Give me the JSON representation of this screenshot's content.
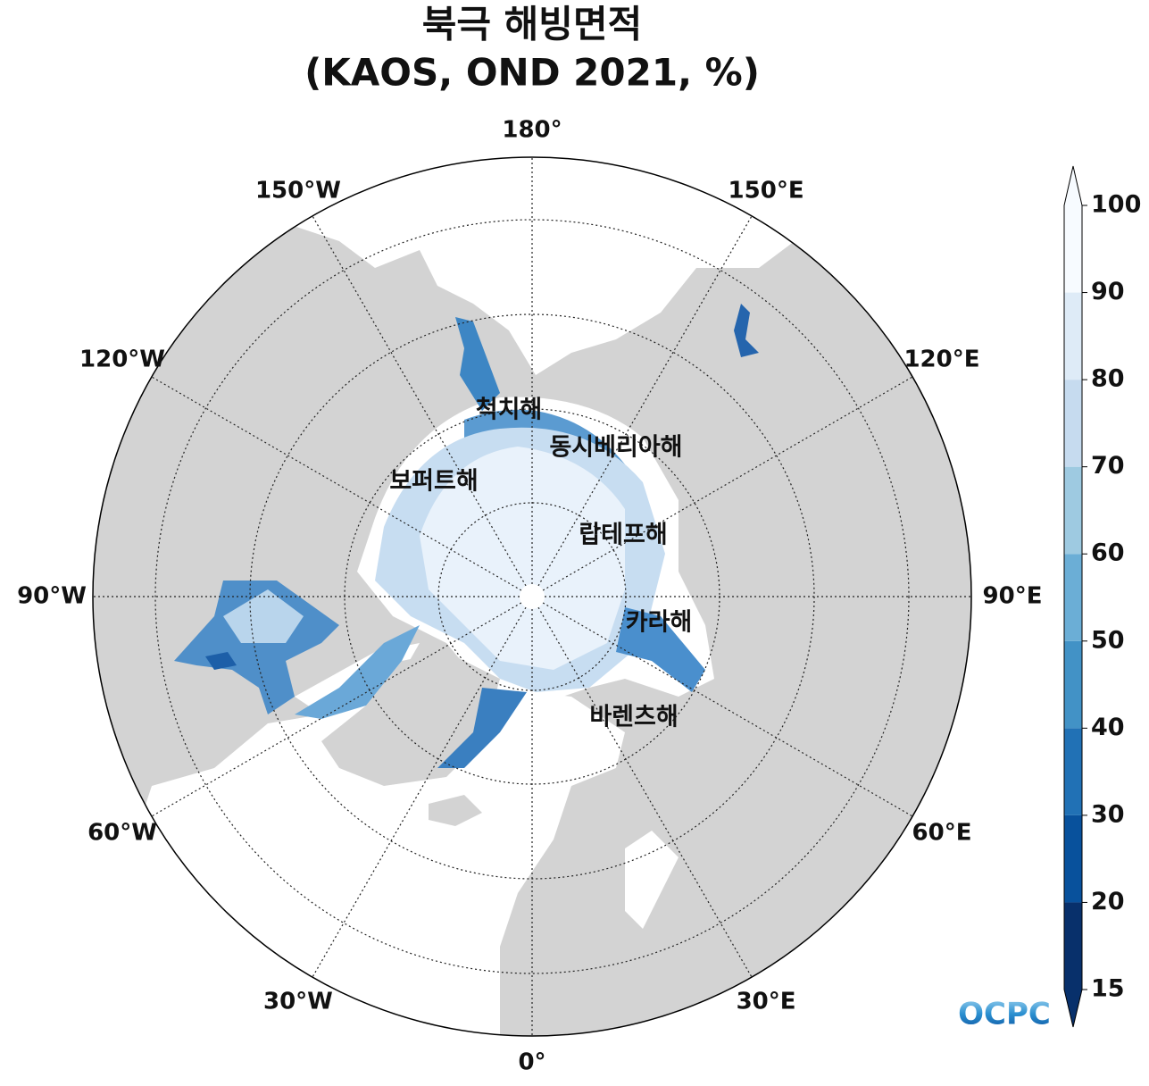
{
  "title": "북극 해빙면적",
  "subtitle": "(KAOS, OND 2021, %)",
  "longitude_labels": [
    "0°",
    "30°E",
    "60°E",
    "90°E",
    "120°E",
    "150°E",
    "180°",
    "150°W",
    "120°W",
    "90°W",
    "60°W",
    "30°W"
  ],
  "sea_labels": [
    "척치해",
    "동시베리아해",
    "보퍼트해",
    "랍테프해",
    "카라해",
    "바렌츠해"
  ],
  "colorbar": {
    "ticks": [
      15,
      20,
      30,
      40,
      50,
      60,
      70,
      80,
      90,
      100
    ],
    "colors": [
      "#08306b",
      "#08519c",
      "#2171b5",
      "#4292c6",
      "#6baed6",
      "#9ecae1",
      "#c6dbef",
      "#deebf7",
      "#f7fbff"
    ]
  },
  "logo": "OCPC"
}
